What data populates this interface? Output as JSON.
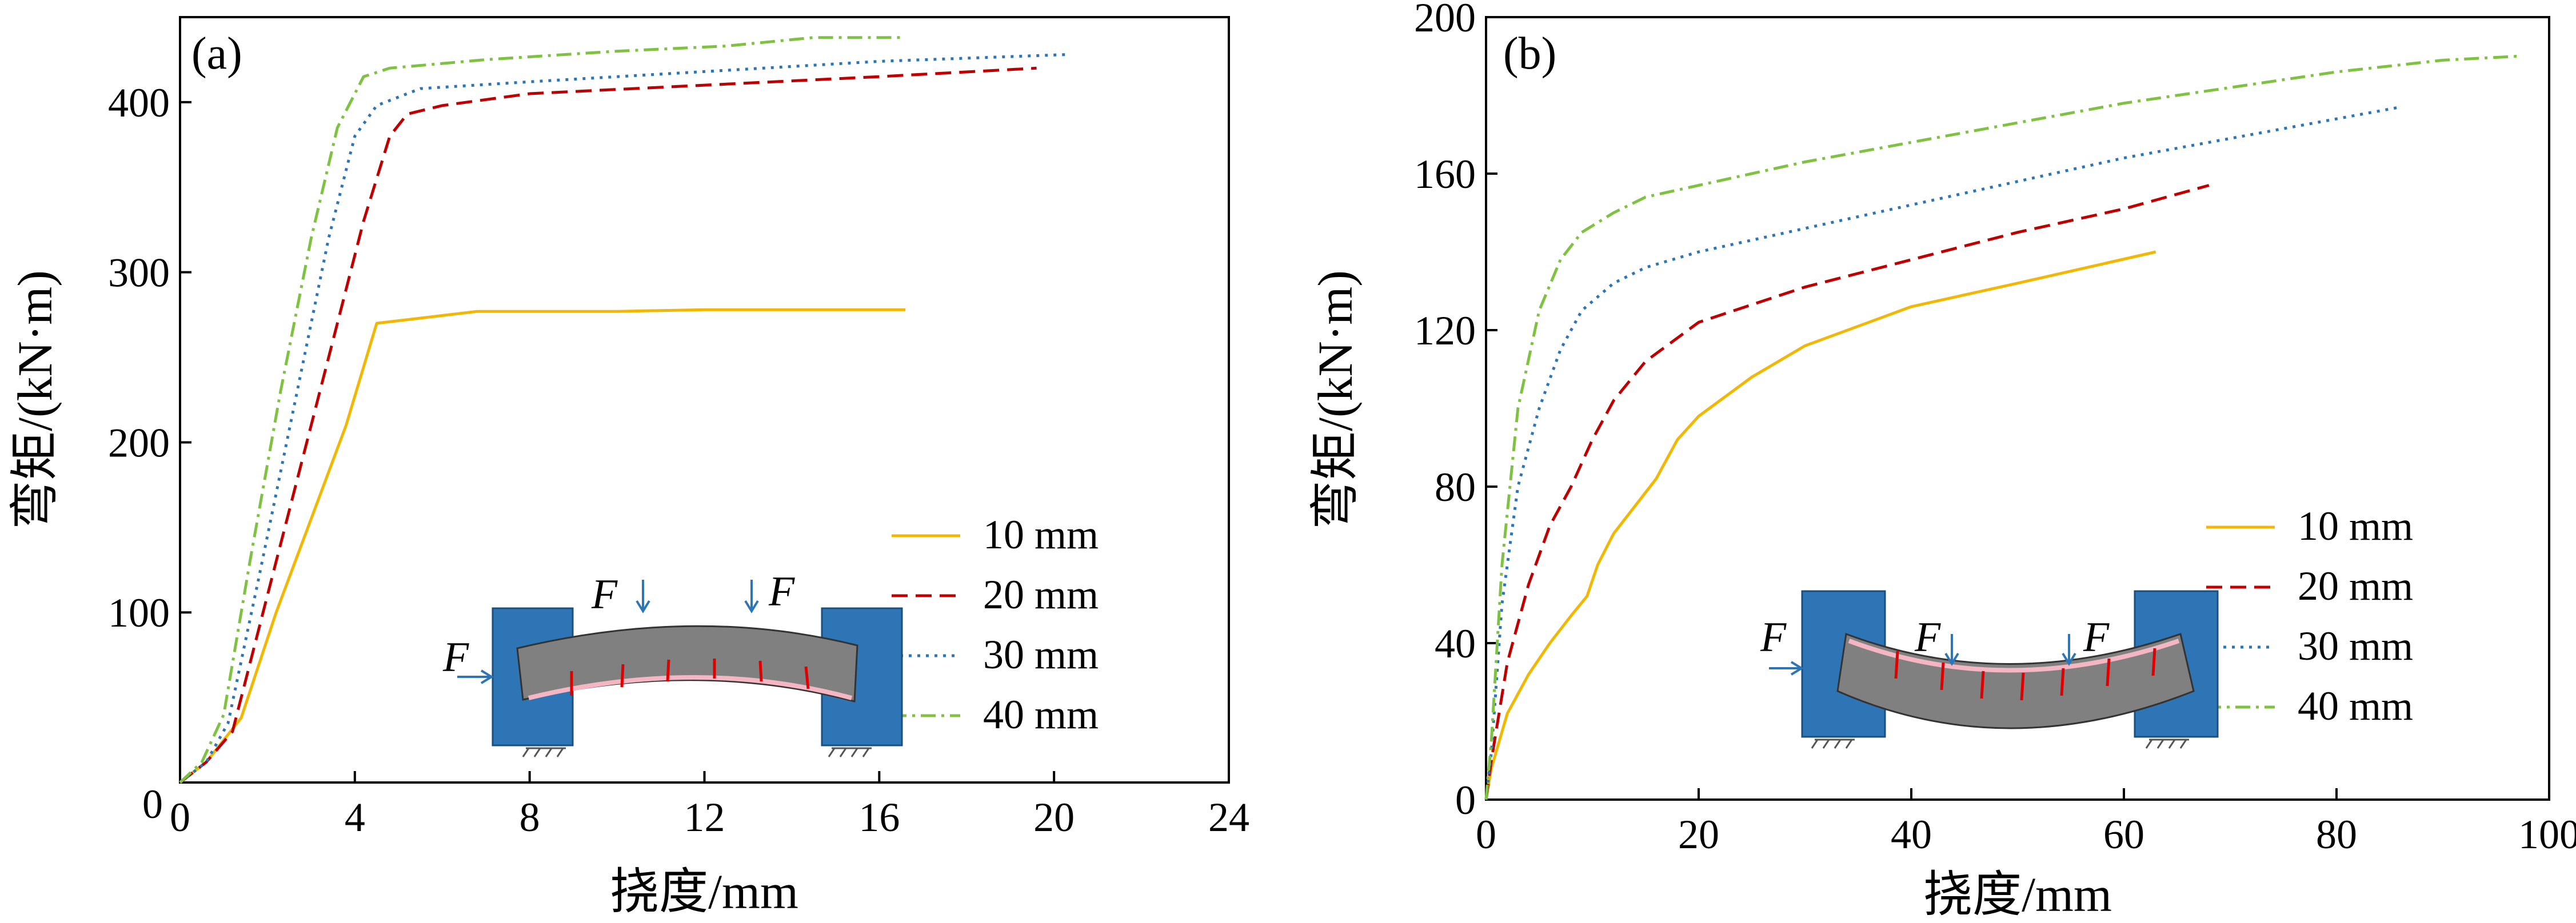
{
  "figure": {
    "panels": [
      "(a)",
      "(b)"
    ]
  },
  "chart_data": [
    {
      "type": "line",
      "panel_label": "(a)",
      "xlabel": "挠度/mm",
      "ylabel": "弯矩/(kN·m)",
      "xlim": [
        0,
        24
      ],
      "ylim": [
        0,
        450
      ],
      "xticks": [
        0,
        4,
        8,
        12,
        16,
        20,
        24
      ],
      "yticks": [
        100,
        200,
        300,
        400
      ],
      "legend_position": "bottom-right",
      "series": [
        {
          "name": "10 mm",
          "color": "#f2b705",
          "dash": "solid",
          "points": [
            [
              0,
              0
            ],
            [
              0.6,
              12
            ],
            [
              1.4,
              38
            ],
            [
              2.2,
              100
            ],
            [
              3.0,
              155
            ],
            [
              3.8,
              210
            ],
            [
              4.5,
              270
            ],
            [
              6.8,
              277
            ],
            [
              10,
              277
            ],
            [
              12,
              278
            ],
            [
              16.6,
              278
            ]
          ]
        },
        {
          "name": "20 mm",
          "color": "#c00000",
          "dash": "dashed",
          "points": [
            [
              0,
              0
            ],
            [
              0.6,
              12
            ],
            [
              1.2,
              30
            ],
            [
              2.0,
              110
            ],
            [
              2.8,
              190
            ],
            [
              3.6,
              270
            ],
            [
              4.2,
              330
            ],
            [
              4.8,
              380
            ],
            [
              5.2,
              393
            ],
            [
              6.0,
              398
            ],
            [
              8.0,
              405
            ],
            [
              12,
              410
            ],
            [
              16,
              415
            ],
            [
              19.6,
              420
            ]
          ]
        },
        {
          "name": "30 mm",
          "color": "#2e75b6",
          "dash": "dotted",
          "points": [
            [
              0,
              0
            ],
            [
              0.6,
              12
            ],
            [
              1.1,
              35
            ],
            [
              1.8,
              120
            ],
            [
              2.6,
              220
            ],
            [
              3.4,
              320
            ],
            [
              4.0,
              380
            ],
            [
              4.5,
              398
            ],
            [
              5.5,
              408
            ],
            [
              8.0,
              412
            ],
            [
              12,
              418
            ],
            [
              16,
              424
            ],
            [
              20.3,
              428
            ]
          ]
        },
        {
          "name": "40 mm",
          "color": "#7fc241",
          "dash": "dashdot",
          "points": [
            [
              0,
              0
            ],
            [
              0.5,
              12
            ],
            [
              1.0,
              40
            ],
            [
              1.6,
              130
            ],
            [
              2.3,
              230
            ],
            [
              3.0,
              320
            ],
            [
              3.6,
              385
            ],
            [
              4.2,
              415
            ],
            [
              4.8,
              420
            ],
            [
              7.0,
              425
            ],
            [
              10,
              430
            ],
            [
              12.5,
              433
            ],
            [
              14.5,
              438
            ],
            [
              16.5,
              438
            ]
          ]
        }
      ]
    },
    {
      "type": "line",
      "panel_label": "(b)",
      "xlabel": "挠度/mm",
      "ylabel": "弯矩/(kN·m)",
      "xlim": [
        0,
        100
      ],
      "ylim": [
        0,
        200
      ],
      "xticks": [
        0,
        20,
        40,
        60,
        80,
        100
      ],
      "yticks": [
        0,
        40,
        80,
        120,
        160,
        200
      ],
      "legend_position": "bottom-right",
      "series": [
        {
          "name": "10 mm",
          "color": "#f2b705",
          "dash": "solid",
          "points": [
            [
              0,
              0
            ],
            [
              0.5,
              8
            ],
            [
              2,
              22
            ],
            [
              4,
              32
            ],
            [
              6,
              40
            ],
            [
              8,
              47
            ],
            [
              9.5,
              52
            ],
            [
              10.5,
              60
            ],
            [
              12,
              68
            ],
            [
              14,
              75
            ],
            [
              16,
              82
            ],
            [
              18,
              92
            ],
            [
              20,
              98
            ],
            [
              25,
              108
            ],
            [
              30,
              116
            ],
            [
              40,
              126
            ],
            [
              50,
              132
            ],
            [
              63,
              140
            ]
          ]
        },
        {
          "name": "20 mm",
          "color": "#c00000",
          "dash": "dashed",
          "points": [
            [
              0,
              0
            ],
            [
              0.5,
              10
            ],
            [
              2,
              35
            ],
            [
              4,
              55
            ],
            [
              6,
              70
            ],
            [
              8,
              80
            ],
            [
              10,
              92
            ],
            [
              12,
              102
            ],
            [
              15,
              112
            ],
            [
              20,
              122
            ],
            [
              30,
              131
            ],
            [
              40,
              138
            ],
            [
              50,
              145
            ],
            [
              60,
              151
            ],
            [
              68,
              157
            ]
          ]
        },
        {
          "name": "30 mm",
          "color": "#2e75b6",
          "dash": "dotted",
          "points": [
            [
              0,
              0
            ],
            [
              0.5,
              12
            ],
            [
              1.5,
              50
            ],
            [
              3,
              80
            ],
            [
              5,
              100
            ],
            [
              7,
              115
            ],
            [
              9,
              125
            ],
            [
              12,
              132
            ],
            [
              15,
              136
            ],
            [
              20,
              140
            ],
            [
              30,
              146
            ],
            [
              40,
              152
            ],
            [
              50,
              158
            ],
            [
              60,
              164
            ],
            [
              70,
              169
            ],
            [
              80,
              174
            ],
            [
              86,
              177
            ]
          ]
        },
        {
          "name": "40 mm",
          "color": "#7fc241",
          "dash": "dashdot",
          "points": [
            [
              0,
              0
            ],
            [
              0.5,
              15
            ],
            [
              1.5,
              60
            ],
            [
              3,
              100
            ],
            [
              5,
              125
            ],
            [
              7,
              138
            ],
            [
              9,
              145
            ],
            [
              12,
              150
            ],
            [
              15,
              154
            ],
            [
              20,
              157
            ],
            [
              30,
              163
            ],
            [
              40,
              168
            ],
            [
              50,
              173
            ],
            [
              60,
              178
            ],
            [
              70,
              182
            ],
            [
              80,
              186
            ],
            [
              90,
              189
            ],
            [
              97,
              190
            ]
          ]
        }
      ]
    }
  ],
  "insets": {
    "force_label": "F"
  }
}
